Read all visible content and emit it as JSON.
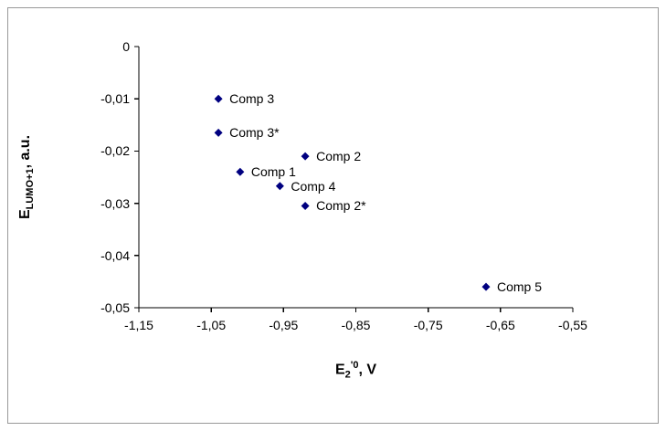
{
  "chart_data": {
    "type": "scatter",
    "title": "",
    "xlabel": "E2'0, V",
    "ylabel": "ELUMO+1, a.u.",
    "xlim": [
      -1.15,
      -0.55
    ],
    "ylim": [
      -0.05,
      0
    ],
    "grid": false,
    "legend": "none",
    "marker_color": "#000080",
    "axis_color": "#000000",
    "x_ticks": [
      {
        "value": -1.15,
        "label": "-1,15"
      },
      {
        "value": -1.05,
        "label": "-1,05"
      },
      {
        "value": -0.95,
        "label": "-0,95"
      },
      {
        "value": -0.85,
        "label": "-0,85"
      },
      {
        "value": -0.75,
        "label": "-0,75"
      },
      {
        "value": -0.65,
        "label": "-0,65"
      },
      {
        "value": -0.55,
        "label": "-0,55"
      }
    ],
    "y_ticks": [
      {
        "value": 0,
        "label": "0"
      },
      {
        "value": -0.01,
        "label": "-0,01"
      },
      {
        "value": -0.02,
        "label": "-0,02"
      },
      {
        "value": -0.03,
        "label": "-0,03"
      },
      {
        "value": -0.04,
        "label": "-0,04"
      },
      {
        "value": -0.05,
        "label": "-0,05"
      }
    ],
    "points": [
      {
        "label": "Comp 3",
        "x": -1.04,
        "y": -0.01
      },
      {
        "label": "Comp 3*",
        "x": -1.04,
        "y": -0.0165
      },
      {
        "label": "Comp 2",
        "x": -0.92,
        "y": -0.021
      },
      {
        "label": "Comp 1",
        "x": -1.01,
        "y": -0.024
      },
      {
        "label": "Comp 4",
        "x": -0.955,
        "y": -0.0267
      },
      {
        "label": "Comp 2*",
        "x": -0.92,
        "y": -0.0305
      },
      {
        "label": "Comp 5",
        "x": -0.67,
        "y": -0.046
      }
    ]
  },
  "axis_titles": {
    "x": {
      "base": "E",
      "sub": "2",
      "sup": "'0",
      "rest": ", V"
    },
    "y": {
      "base": "E",
      "sub": "LUMO+1",
      "rest": ", a.u."
    }
  }
}
